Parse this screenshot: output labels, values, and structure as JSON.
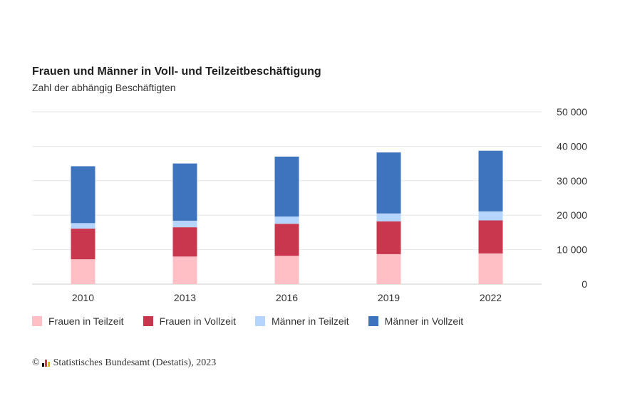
{
  "chart_data": {
    "type": "bar",
    "stacked": true,
    "title": "Frauen und Männer in Voll- und Teilzeitbeschäftigung",
    "subtitle": "Zahl der abhängig Beschäftigten",
    "categories": [
      "2010",
      "2013",
      "2016",
      "2019",
      "2022"
    ],
    "series": [
      {
        "name": "Frauen in Teilzeit",
        "color": "#ffbfc4",
        "values": [
          7200,
          8000,
          8200,
          8700,
          8900
        ]
      },
      {
        "name": "Frauen in Vollzeit",
        "color": "#c8374e",
        "values": [
          8900,
          8500,
          9300,
          9500,
          9600
        ]
      },
      {
        "name": "Männer in Teilzeit",
        "color": "#b5d5ff",
        "values": [
          1600,
          1900,
          2100,
          2300,
          2600
        ]
      },
      {
        "name": "Männer in Vollzeit",
        "color": "#3e74bd",
        "values": [
          16500,
          16600,
          17400,
          17700,
          17600
        ]
      }
    ],
    "ylim": [
      0,
      50000
    ],
    "yticks": [
      0,
      10000,
      20000,
      30000,
      40000,
      50000
    ],
    "ytick_labels": [
      "0",
      "10 000",
      "20 000",
      "30 000",
      "40 000",
      "50 000"
    ],
    "yaxis_side": "right",
    "grid": true,
    "legend_position": "bottom",
    "xlabel": "",
    "ylabel": ""
  },
  "source": {
    "copyright": "©",
    "text": "Statistisches Bundesamt (Destatis), 2023"
  }
}
